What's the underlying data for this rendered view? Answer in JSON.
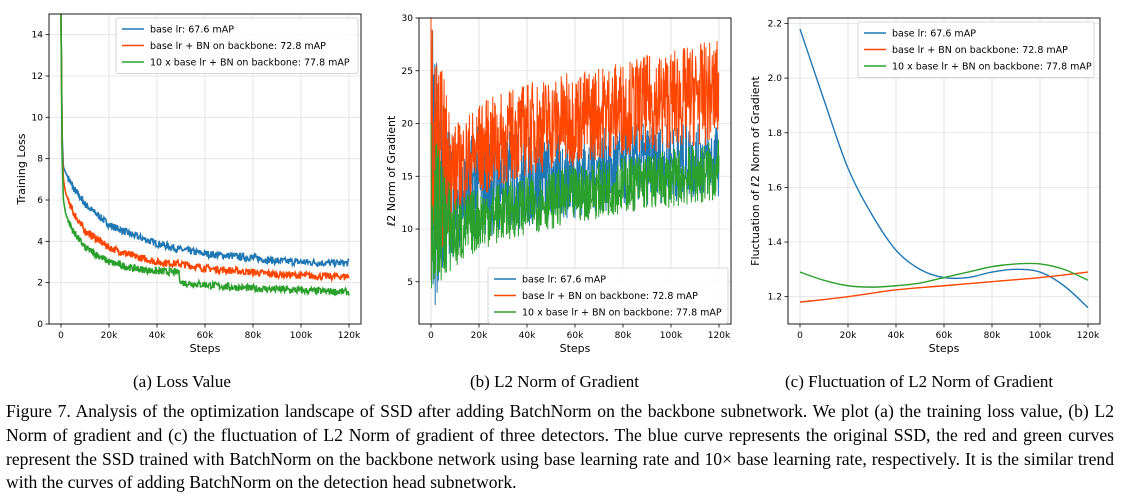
{
  "colors": {
    "blue": "#1f77b4",
    "red": "#ff4500",
    "green": "#2ca02c",
    "grid": "#e0e0e0"
  },
  "figure": {
    "caption": "Figure 7. Analysis of the optimization landscape of SSD after adding BatchNorm on the backbone subnetwork. We plot (a) the training loss value, (b) L2 Norm of gradient and (c) the fluctuation of L2 Norm of gradient of three detectors. The blue curve represents the original SSD, the red and green curves represent the SSD trained with BatchNorm on the backbone network using base learning rate and 10× base learning rate, respectively. It is the similar trend with the curves of adding BatchNorm on the detection head subnetwork.",
    "subcaptions": [
      "(a)  Loss Value",
      "(b)  L2 Norm of Gradient",
      "(c)  Fluctuation of L2 Norm of Gradient"
    ]
  },
  "chart_data": [
    {
      "type": "line",
      "title": "",
      "xlabel": "Steps",
      "ylabel": "Training Loss",
      "xlim": [
        -5000,
        125000
      ],
      "ylim": [
        0,
        15
      ],
      "xticks": [
        0,
        20000,
        40000,
        60000,
        80000,
        100000,
        120000
      ],
      "xtick_labels": [
        "0",
        "20k",
        "40k",
        "60k",
        "80k",
        "100k",
        "120k"
      ],
      "yticks": [
        0,
        2,
        4,
        6,
        8,
        10,
        12,
        14
      ],
      "ytick_labels": [
        "0",
        "2",
        "4",
        "6",
        "8",
        "10",
        "12",
        "14"
      ],
      "grid": true,
      "legend": "top-right",
      "series": [
        {
          "name": "base lr: 67.6 mAP",
          "color": "blue",
          "x": [
            0,
            500,
            1000,
            2000,
            5000,
            10000,
            20000,
            30000,
            40000,
            50000,
            60000,
            70000,
            80000,
            90000,
            100000,
            110000,
            120000
          ],
          "y": [
            15,
            9.0,
            7.6,
            7.3,
            6.6,
            5.8,
            4.8,
            4.3,
            3.9,
            3.6,
            3.4,
            3.3,
            3.2,
            3.05,
            3.0,
            2.95,
            2.95
          ]
        },
        {
          "name": "base lr + BN on backbone: 72.8 mAP",
          "color": "red",
          "x": [
            0,
            500,
            1000,
            2000,
            5000,
            10000,
            20000,
            30000,
            40000,
            50000,
            60000,
            70000,
            80000,
            90000,
            100000,
            110000,
            120000
          ],
          "y": [
            15,
            8.5,
            7.0,
            6.3,
            5.4,
            4.5,
            3.7,
            3.3,
            3.0,
            2.9,
            2.7,
            2.6,
            2.5,
            2.4,
            2.35,
            2.3,
            2.3
          ]
        },
        {
          "name": "10 x base lr + BN on backbone: 77.8 mAP",
          "color": "green",
          "x": [
            0,
            500,
            1000,
            2000,
            5000,
            10000,
            20000,
            30000,
            40000,
            49000,
            50000,
            60000,
            70000,
            80000,
            90000,
            100000,
            110000,
            120000
          ],
          "y": [
            15,
            8.0,
            6.0,
            5.3,
            4.5,
            3.7,
            3.0,
            2.7,
            2.55,
            2.5,
            2.0,
            1.9,
            1.8,
            1.72,
            1.68,
            1.62,
            1.58,
            1.55
          ]
        }
      ]
    },
    {
      "type": "line",
      "title": "",
      "xlabel": "Steps",
      "ylabel": "ℓ2 Norm of Gradient",
      "xlim": [
        -5000,
        125000
      ],
      "ylim": [
        1,
        30
      ],
      "xticks": [
        0,
        20000,
        40000,
        60000,
        80000,
        100000,
        120000
      ],
      "xtick_labels": [
        "0",
        "20k",
        "40k",
        "60k",
        "80k",
        "100k",
        "120k"
      ],
      "yticks": [
        5,
        10,
        15,
        20,
        25,
        30
      ],
      "ytick_labels": [
        "5",
        "10",
        "15",
        "20",
        "25",
        "30"
      ],
      "grid": true,
      "legend": "bottom-right",
      "series": [
        {
          "name": "base lr: 67.6 mAP",
          "color": "blue",
          "x": [
            0,
            10000,
            20000,
            40000,
            60000,
            80000,
            100000,
            120000
          ],
          "low": [
            1,
            8,
            9,
            10,
            11,
            12,
            12.5,
            13
          ],
          "high": [
            30,
            17,
            20,
            19,
            19,
            20,
            20,
            20
          ]
        },
        {
          "name": "base lr + BN on backbone: 72.8 mAP",
          "color": "red",
          "x": [
            0,
            10000,
            20000,
            40000,
            60000,
            80000,
            100000,
            120000
          ],
          "low": [
            5,
            11,
            13,
            15,
            16,
            17,
            17.5,
            18
          ],
          "high": [
            30,
            20,
            22,
            24,
            25,
            26,
            27,
            28
          ]
        },
        {
          "name": "10 x base lr + BN on backbone: 77.8 mAP",
          "color": "green",
          "x": [
            0,
            10000,
            20000,
            40000,
            60000,
            80000,
            100000,
            120000
          ],
          "low": [
            4,
            6,
            8,
            9.5,
            10.5,
            11.5,
            12,
            12.5
          ],
          "high": [
            20,
            13,
            14,
            15,
            16,
            17,
            17.5,
            18.5
          ]
        }
      ]
    },
    {
      "type": "line",
      "title": "",
      "xlabel": "Steps",
      "ylabel": "Fluctuation of ℓ2 Norm of Gradient",
      "xlim": [
        -5000,
        125000
      ],
      "ylim": [
        1.1,
        2.22
      ],
      "xticks": [
        0,
        20000,
        40000,
        60000,
        80000,
        100000,
        120000
      ],
      "xtick_labels": [
        "0",
        "20k",
        "40k",
        "60k",
        "80k",
        "100k",
        "120k"
      ],
      "yticks": [
        1.2,
        1.4,
        1.6,
        1.8,
        2.0,
        2.2
      ],
      "ytick_labels": [
        "1.2",
        "1.4",
        "1.6",
        "1.8",
        "2.0",
        "2.2"
      ],
      "grid": true,
      "legend": "top-right",
      "series": [
        {
          "name": "base lr: 67.6 mAP",
          "color": "blue",
          "x": [
            0,
            10000,
            20000,
            30000,
            40000,
            50000,
            60000,
            70000,
            80000,
            90000,
            100000,
            110000,
            120000
          ],
          "y": [
            2.18,
            1.92,
            1.67,
            1.5,
            1.37,
            1.3,
            1.27,
            1.27,
            1.29,
            1.3,
            1.29,
            1.24,
            1.16
          ]
        },
        {
          "name": "base lr + BN on backbone: 72.8 mAP",
          "color": "red",
          "x": [
            0,
            20000,
            40000,
            60000,
            80000,
            100000,
            120000
          ],
          "y": [
            1.18,
            1.2,
            1.225,
            1.24,
            1.255,
            1.27,
            1.29
          ]
        },
        {
          "name": "10 x base lr + BN on backbone: 77.8 mAP",
          "color": "green",
          "x": [
            0,
            10000,
            20000,
            30000,
            40000,
            50000,
            60000,
            70000,
            80000,
            90000,
            100000,
            110000,
            120000
          ],
          "y": [
            1.29,
            1.26,
            1.24,
            1.235,
            1.24,
            1.25,
            1.27,
            1.29,
            1.31,
            1.32,
            1.32,
            1.3,
            1.26
          ]
        }
      ]
    }
  ]
}
